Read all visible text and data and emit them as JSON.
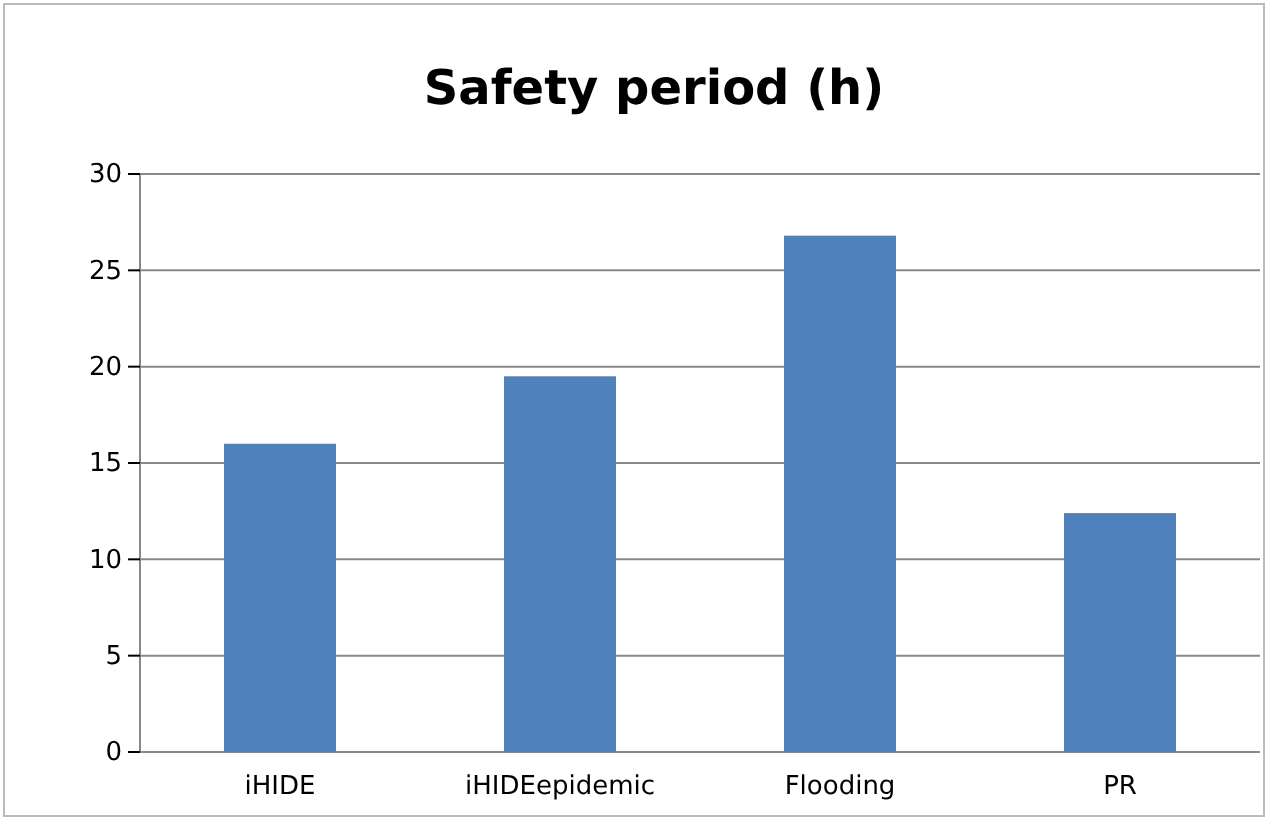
{
  "chart_data": {
    "type": "bar",
    "title": "Safety period (h)",
    "categories": [
      "iHIDE",
      "iHIDEepidemic",
      "Flooding",
      "PR"
    ],
    "values": [
      16,
      19.5,
      26.8,
      12.4
    ],
    "color": "#4f81bd",
    "ylim": [
      0,
      30
    ],
    "yticks": [
      0,
      5,
      10,
      15,
      20,
      25,
      30
    ],
    "grid": "y"
  }
}
